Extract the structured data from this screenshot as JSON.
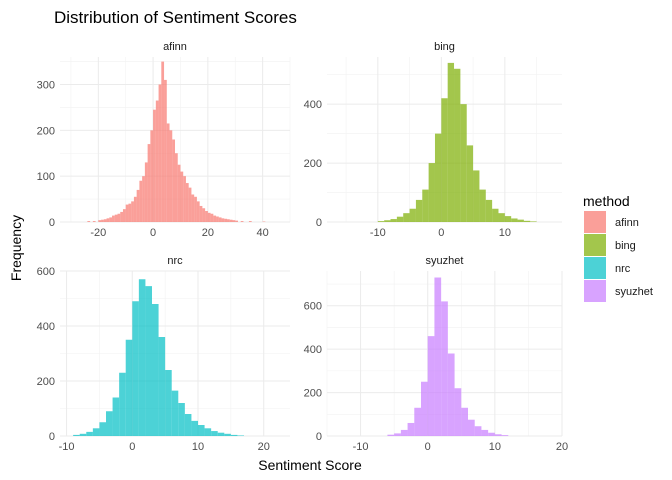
{
  "chart_data": {
    "type": "histogram-facets",
    "title": "Distribution of Sentiment Scores",
    "xlabel": "Sentiment Score",
    "ylabel": "Frequency",
    "legend": {
      "title": "method",
      "position": "right",
      "items": [
        {
          "label": "afinn",
          "color": "#F8766D"
        },
        {
          "label": "bing",
          "color": "#7CAE00"
        },
        {
          "label": "nrc",
          "color": "#00BFC4"
        },
        {
          "label": "syuzhet",
          "color": "#C77CFF"
        }
      ]
    },
    "grid": true,
    "opacity": 0.7,
    "facets": [
      {
        "name": "afinn",
        "color": "#F8766D",
        "xlim": [
          -34,
          50
        ],
        "ylim": [
          0,
          360
        ],
        "xticks": [
          -20,
          0,
          20,
          40
        ],
        "yticks": [
          0,
          100,
          200,
          300
        ],
        "bins": [
          [
            -24,
            -23,
            2
          ],
          [
            -22,
            -21,
            2
          ],
          [
            -20,
            -19,
            4
          ],
          [
            -19,
            -18,
            5
          ],
          [
            -18,
            -17,
            6
          ],
          [
            -17,
            -16,
            8
          ],
          [
            -16,
            -15,
            10
          ],
          [
            -15,
            -14,
            14
          ],
          [
            -14,
            -13,
            16
          ],
          [
            -13,
            -12,
            18
          ],
          [
            -12,
            -11,
            22
          ],
          [
            -11,
            -10,
            28
          ],
          [
            -10,
            -9,
            38
          ],
          [
            -9,
            -8,
            40
          ],
          [
            -8,
            -7,
            45
          ],
          [
            -7,
            -6,
            55
          ],
          [
            -6,
            -5,
            70
          ],
          [
            -5,
            -4,
            90
          ],
          [
            -4,
            -3,
            100
          ],
          [
            -3,
            -2,
            130
          ],
          [
            -2,
            -1,
            170
          ],
          [
            -1,
            0,
            200
          ],
          [
            0,
            1,
            245
          ],
          [
            1,
            2,
            265
          ],
          [
            2,
            3,
            300
          ],
          [
            3,
            4,
            350
          ],
          [
            4,
            5,
            310
          ],
          [
            5,
            6,
            215
          ],
          [
            6,
            7,
            200
          ],
          [
            7,
            8,
            180
          ],
          [
            8,
            9,
            150
          ],
          [
            9,
            10,
            125
          ],
          [
            10,
            11,
            110
          ],
          [
            11,
            12,
            100
          ],
          [
            12,
            13,
            85
          ],
          [
            13,
            14,
            75
          ],
          [
            14,
            15,
            60
          ],
          [
            15,
            16,
            55
          ],
          [
            16,
            17,
            45
          ],
          [
            17,
            18,
            35
          ],
          [
            18,
            19,
            30
          ],
          [
            19,
            20,
            24
          ],
          [
            20,
            21,
            20
          ],
          [
            21,
            22,
            18
          ],
          [
            22,
            23,
            14
          ],
          [
            23,
            24,
            12
          ],
          [
            24,
            25,
            10
          ],
          [
            25,
            26,
            8
          ],
          [
            26,
            27,
            7
          ],
          [
            27,
            28,
            6
          ],
          [
            28,
            29,
            5
          ],
          [
            29,
            30,
            4
          ],
          [
            30,
            31,
            3
          ],
          [
            32,
            33,
            2
          ],
          [
            35,
            36,
            2
          ],
          [
            40,
            41,
            1
          ]
        ]
      },
      {
        "name": "bing",
        "color": "#7CAE00",
        "xlim": [
          -18,
          19
        ],
        "ylim": [
          0,
          560
        ],
        "xticks": [
          -10,
          0,
          10
        ],
        "yticks": [
          0,
          200,
          400
        ],
        "bins": [
          [
            -10,
            -9,
            3
          ],
          [
            -9,
            -8,
            6
          ],
          [
            -8,
            -7,
            10
          ],
          [
            -7,
            -6,
            18
          ],
          [
            -6,
            -5,
            30
          ],
          [
            -5,
            -4,
            45
          ],
          [
            -4,
            -3,
            75
          ],
          [
            -3,
            -2,
            110
          ],
          [
            -2,
            -1,
            200
          ],
          [
            -1,
            0,
            300
          ],
          [
            0,
            1,
            420
          ],
          [
            1,
            2,
            540
          ],
          [
            2,
            3,
            520
          ],
          [
            3,
            4,
            400
          ],
          [
            4,
            5,
            260
          ],
          [
            5,
            6,
            175
          ],
          [
            6,
            7,
            110
          ],
          [
            7,
            8,
            75
          ],
          [
            8,
            9,
            45
          ],
          [
            9,
            10,
            30
          ],
          [
            10,
            11,
            20
          ],
          [
            11,
            12,
            12
          ],
          [
            12,
            13,
            8
          ],
          [
            13,
            14,
            4
          ],
          [
            14,
            15,
            2
          ]
        ]
      },
      {
        "name": "nrc",
        "color": "#00BFC4",
        "xlim": [
          -11,
          24
        ],
        "ylim": [
          0,
          600
        ],
        "xticks": [
          -10,
          0,
          10,
          20
        ],
        "yticks": [
          0,
          200,
          400,
          600
        ],
        "bins": [
          [
            -9,
            -8,
            4
          ],
          [
            -8,
            -7,
            8
          ],
          [
            -7,
            -6,
            15
          ],
          [
            -6,
            -5,
            28
          ],
          [
            -5,
            -4,
            50
          ],
          [
            -4,
            -3,
            90
          ],
          [
            -3,
            -2,
            140
          ],
          [
            -2,
            -1,
            230
          ],
          [
            -1,
            0,
            350
          ],
          [
            0,
            1,
            490
          ],
          [
            1,
            2,
            570
          ],
          [
            2,
            3,
            545
          ],
          [
            3,
            4,
            480
          ],
          [
            4,
            5,
            360
          ],
          [
            5,
            6,
            240
          ],
          [
            6,
            7,
            165
          ],
          [
            7,
            8,
            120
          ],
          [
            8,
            9,
            80
          ],
          [
            9,
            10,
            55
          ],
          [
            10,
            11,
            40
          ],
          [
            11,
            12,
            28
          ],
          [
            12,
            13,
            18
          ],
          [
            13,
            14,
            12
          ],
          [
            14,
            15,
            8
          ],
          [
            15,
            16,
            4
          ],
          [
            16,
            17,
            2
          ]
        ]
      },
      {
        "name": "syuzhet",
        "color": "#C77CFF",
        "xlim": [
          -15,
          20
        ],
        "ylim": [
          0,
          760
        ],
        "xticks": [
          -10,
          0,
          10,
          20
        ],
        "yticks": [
          0,
          200,
          400,
          600
        ],
        "bins": [
          [
            -6,
            -5,
            6
          ],
          [
            -5,
            -4,
            12
          ],
          [
            -4,
            -3,
            28
          ],
          [
            -3,
            -2,
            60
          ],
          [
            -2,
            -1,
            130
          ],
          [
            -1,
            0,
            250
          ],
          [
            0,
            1,
            460
          ],
          [
            1,
            2,
            730
          ],
          [
            2,
            3,
            620
          ],
          [
            3,
            4,
            380
          ],
          [
            4,
            5,
            220
          ],
          [
            5,
            6,
            130
          ],
          [
            6,
            7,
            75
          ],
          [
            7,
            8,
            45
          ],
          [
            8,
            9,
            28
          ],
          [
            9,
            10,
            15
          ],
          [
            10,
            11,
            8
          ],
          [
            11,
            12,
            4
          ]
        ]
      }
    ]
  }
}
